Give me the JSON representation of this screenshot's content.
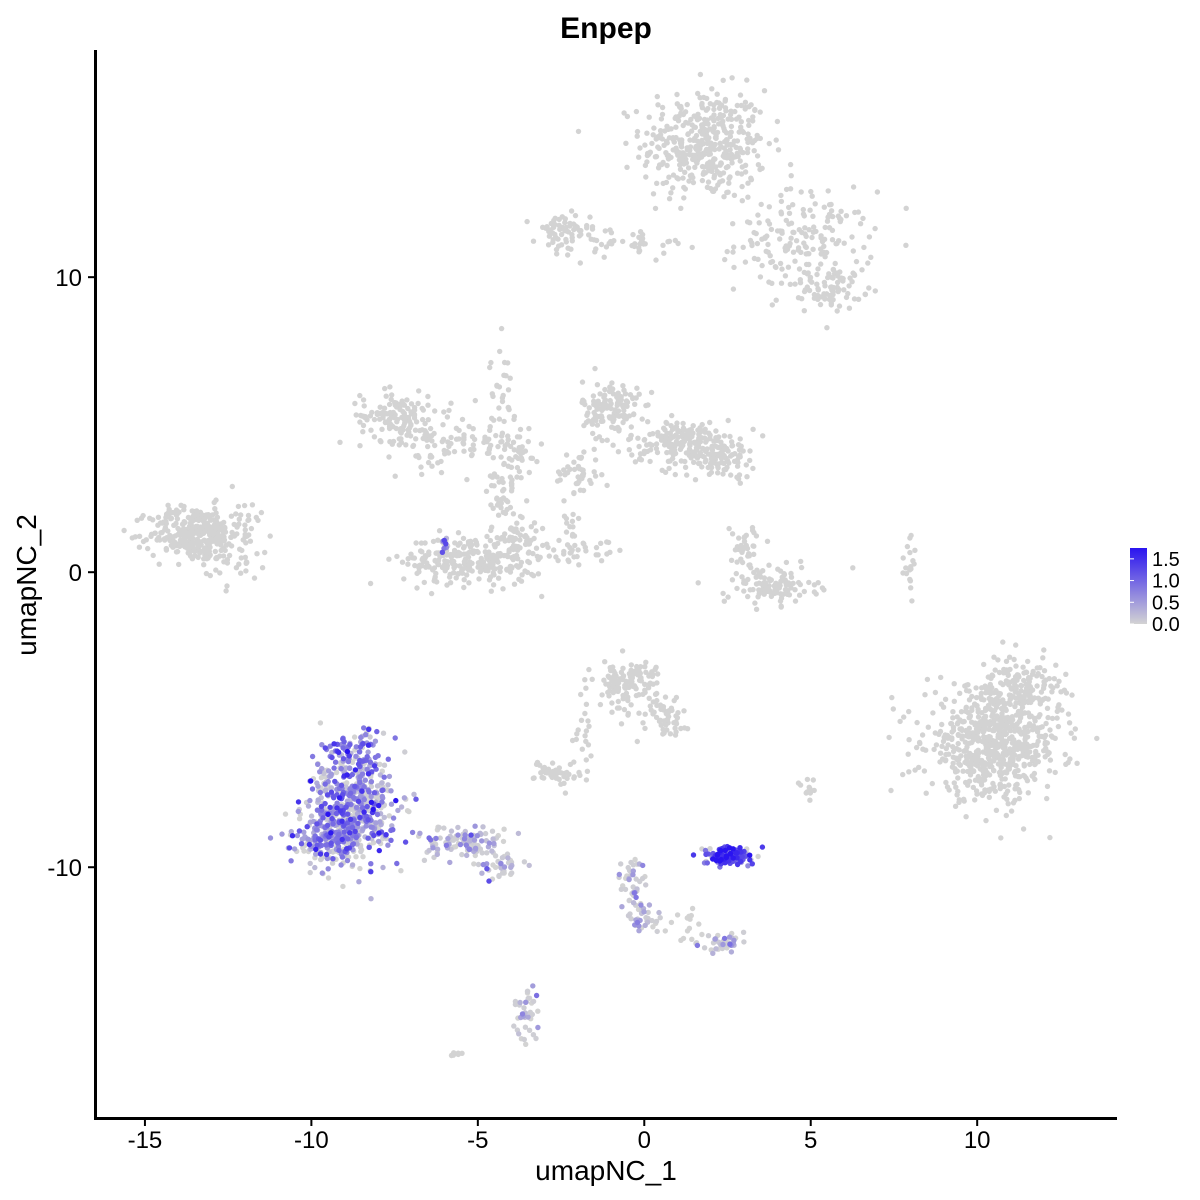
{
  "chart_data": {
    "type": "scatter",
    "title": "Enpep",
    "xlabel": "umapNC_1",
    "ylabel": "umapNC_2",
    "xlim": [
      -16.5,
      14.2
    ],
    "ylim": [
      -18.5,
      17.7
    ],
    "xticks": [
      -15,
      -10,
      -5,
      0,
      5,
      10
    ],
    "xtick_labels": [
      "-15",
      "-10",
      "-5",
      "0",
      "5",
      "10"
    ],
    "yticks": [
      -10,
      0,
      10
    ],
    "ytick_labels": [
      "-10",
      "0",
      "10"
    ],
    "grid": false,
    "legend": {
      "placement": "right",
      "type": "colorbar",
      "labels": [
        "1.5",
        "1.0",
        "0.5",
        "0.0"
      ],
      "values": [
        1.5,
        1.0,
        0.5,
        0.0
      ],
      "range": [
        0,
        1.75
      ],
      "low_color": "#d3d3d3",
      "high_color": "#2a14f0"
    },
    "point_color_low": "#d3d3d3",
    "point_color_high": "#2a14f0",
    "clusters": [
      {
        "cx": 1.8,
        "cy": 14.5,
        "sx": 1.1,
        "sy": 1.1,
        "n": 420,
        "expr": 0,
        "shape": "blob"
      },
      {
        "cx": 4.8,
        "cy": 11.2,
        "sx": 1.2,
        "sy": 1.0,
        "n": 180,
        "expr": 0,
        "shape": "blob"
      },
      {
        "cx": 5.7,
        "cy": 9.6,
        "sx": 0.5,
        "sy": 0.4,
        "n": 70,
        "expr": 0,
        "shape": "blob"
      },
      {
        "cx": -2.5,
        "cy": 11.5,
        "sx": 0.5,
        "sy": 0.4,
        "n": 60,
        "expr": 0,
        "shape": "blob"
      },
      {
        "cx": -0.5,
        "cy": 11.2,
        "sx": 1.2,
        "sy": 0.25,
        "n": 45,
        "expr": 0,
        "shape": "blob"
      },
      {
        "cx": -13.5,
        "cy": 1.3,
        "sx": 0.8,
        "sy": 0.55,
        "n": 320,
        "expr": 0,
        "shape": "blob"
      },
      {
        "cx": -12.2,
        "cy": 1.0,
        "sx": 0.7,
        "sy": 0.9,
        "n": 60,
        "expr": 0,
        "shape": "blob"
      },
      {
        "cx": -7.5,
        "cy": 5.3,
        "sx": 0.6,
        "sy": 0.5,
        "n": 120,
        "expr": 0,
        "shape": "blob"
      },
      {
        "cx": -6.0,
        "cy": 4.5,
        "sx": 1.0,
        "sy": 0.6,
        "n": 90,
        "expr": 0,
        "shape": "blob"
      },
      {
        "cx": -4.0,
        "cy": 4.0,
        "sx": 0.6,
        "sy": 0.6,
        "n": 60,
        "expr": 0,
        "shape": "blob"
      },
      {
        "cx": -5.2,
        "cy": 0.4,
        "sx": 1.2,
        "sy": 0.5,
        "n": 260,
        "expr": 0,
        "shape": "blob"
      },
      {
        "cx": -3.8,
        "cy": 1.2,
        "sx": 0.5,
        "sy": 0.6,
        "n": 60,
        "expr": 0,
        "shape": "blob"
      },
      {
        "cx": -4.3,
        "cy": 2.6,
        "sx": 0.25,
        "sy": 0.5,
        "n": 30,
        "expr": 0,
        "shape": "blob"
      },
      {
        "cx": -4.3,
        "cy": 6.3,
        "sx": 0.2,
        "sy": 0.8,
        "n": 25,
        "expr": 0,
        "shape": "blob"
      },
      {
        "cx": -1.0,
        "cy": 5.5,
        "sx": 0.5,
        "sy": 0.6,
        "n": 140,
        "expr": 0,
        "shape": "blob"
      },
      {
        "cx": 1.2,
        "cy": 4.4,
        "sx": 1.0,
        "sy": 0.45,
        "n": 180,
        "expr": 0,
        "shape": "blob"
      },
      {
        "cx": 2.3,
        "cy": 3.9,
        "sx": 0.6,
        "sy": 0.4,
        "n": 90,
        "expr": 0,
        "shape": "blob"
      },
      {
        "cx": -2.0,
        "cy": 3.3,
        "sx": 0.4,
        "sy": 0.5,
        "n": 40,
        "expr": 0,
        "shape": "blob"
      },
      {
        "cx": -2.2,
        "cy": 1.2,
        "sx": 0.25,
        "sy": 0.6,
        "n": 20,
        "expr": 0,
        "shape": "blob"
      },
      {
        "cx": -1.5,
        "cy": 0.8,
        "sx": 0.6,
        "sy": 0.3,
        "n": 20,
        "expr": 0,
        "shape": "blob"
      },
      {
        "cx": 3.8,
        "cy": -0.5,
        "sx": 0.8,
        "sy": 0.35,
        "n": 110,
        "expr": 0,
        "shape": "blob"
      },
      {
        "cx": 3.1,
        "cy": 0.8,
        "sx": 0.3,
        "sy": 0.5,
        "n": 40,
        "expr": 0,
        "shape": "blob"
      },
      {
        "cx": 8.0,
        "cy": 0.3,
        "sx": 0.12,
        "sy": 0.6,
        "n": 18,
        "expr": 0,
        "shape": "blob"
      },
      {
        "cx": 10.5,
        "cy": -5.8,
        "sx": 1.2,
        "sy": 1.1,
        "n": 700,
        "expr": 0,
        "shape": "blob"
      },
      {
        "cx": 11.3,
        "cy": -3.9,
        "sx": 0.7,
        "sy": 0.6,
        "n": 120,
        "expr": 0,
        "shape": "blob"
      },
      {
        "cx": -0.5,
        "cy": -3.8,
        "sx": 0.6,
        "sy": 0.5,
        "n": 130,
        "expr": 0,
        "shape": "blob"
      },
      {
        "cx": 0.6,
        "cy": -4.9,
        "sx": 0.4,
        "sy": 0.4,
        "n": 50,
        "expr": 0,
        "shape": "blob"
      },
      {
        "cx": -2.6,
        "cy": -6.8,
        "sx": 0.4,
        "sy": 0.25,
        "n": 50,
        "expr": 0,
        "shape": "blob"
      },
      {
        "cx": -1.8,
        "cy": -5.4,
        "sx": 0.2,
        "sy": 0.5,
        "n": 15,
        "expr": 0,
        "shape": "blob"
      },
      {
        "cx": 5.0,
        "cy": -7.4,
        "sx": 0.2,
        "sy": 0.3,
        "n": 12,
        "expr": 0,
        "shape": "blob"
      },
      {
        "cx": -8.8,
        "cy": -8.0,
        "sx": 0.75,
        "sy": 1.0,
        "n": 560,
        "expr": 0.55,
        "shape": "blob"
      },
      {
        "cx": -9.4,
        "cy": -9.0,
        "sx": 0.7,
        "sy": 0.5,
        "n": 180,
        "expr": 0.6,
        "shape": "blob"
      },
      {
        "cx": -8.8,
        "cy": -6.0,
        "sx": 0.6,
        "sy": 0.45,
        "n": 90,
        "expr": 0.75,
        "shape": "blob"
      },
      {
        "cx": -5.5,
        "cy": -9.2,
        "sx": 0.9,
        "sy": 0.35,
        "n": 110,
        "expr": 0.2,
        "shape": "blob"
      },
      {
        "cx": -4.3,
        "cy": -10.0,
        "sx": 0.4,
        "sy": 0.25,
        "n": 40,
        "expr": 0.15,
        "shape": "blob"
      },
      {
        "cx": 2.5,
        "cy": -9.6,
        "sx": 0.45,
        "sy": 0.18,
        "n": 150,
        "expr": 1.1,
        "shape": "blob"
      },
      {
        "cx": -0.3,
        "cy": -10.6,
        "sx": 0.25,
        "sy": 0.6,
        "n": 45,
        "expr": 0.05,
        "shape": "blob"
      },
      {
        "cx": 0.0,
        "cy": -11.8,
        "sx": 0.3,
        "sy": 0.25,
        "n": 30,
        "expr": 0.1,
        "shape": "blob"
      },
      {
        "cx": 2.3,
        "cy": -12.6,
        "sx": 0.3,
        "sy": 0.2,
        "n": 40,
        "expr": 0.1,
        "shape": "blob"
      },
      {
        "cx": 1.3,
        "cy": -12.0,
        "sx": 0.4,
        "sy": 0.3,
        "n": 15,
        "expr": 0,
        "shape": "blob"
      },
      {
        "cx": -3.5,
        "cy": -15.0,
        "sx": 0.25,
        "sy": 0.6,
        "n": 40,
        "expr": 0.05,
        "shape": "blob"
      },
      {
        "cx": -6.0,
        "cy": 0.9,
        "sx": 0.12,
        "sy": 0.3,
        "n": 10,
        "expr": 0.6,
        "shape": "blob"
      },
      {
        "cx": -5.8,
        "cy": -16.3,
        "sx": 0.15,
        "sy": 0.1,
        "n": 8,
        "expr": 0,
        "shape": "blob"
      }
    ]
  }
}
